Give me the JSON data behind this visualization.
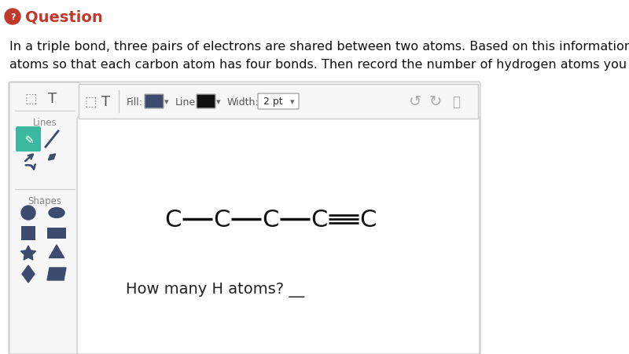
{
  "title_icon_color": "#c0392b",
  "title_text": "Question",
  "title_color": "#c0392b",
  "title_fontsize": 14,
  "body_text": "In a triple bond, three pairs of electrons are shared between two atoms. Based on this information, draw the hydrogen\natoms so that each carbon atom has four bonds. Then record the number of hydrogen atoms you drew using a text box.",
  "body_fontsize": 11.5,
  "panel_border": "#cccccc",
  "molecule_fontsize": 22,
  "question_text": "How many H atoms? __",
  "question_fontsize": 14,
  "teal_btn_color": "#3bb89e",
  "dark_icon_color": "#3d4b6e",
  "fill_label": "Fill:",
  "line_label": "Line:",
  "width_label": "Width:",
  "width_value": "2 pt",
  "lines_label": "Lines",
  "shapes_label": "Shapes",
  "background_color": "#ffffff",
  "sidebar_bg": "#f7f7f7",
  "toolbar_bg": "#f7f7f7",
  "outer_panel_bg": "#f0f0f0",
  "outer_panel_border": "#d0d0d0"
}
